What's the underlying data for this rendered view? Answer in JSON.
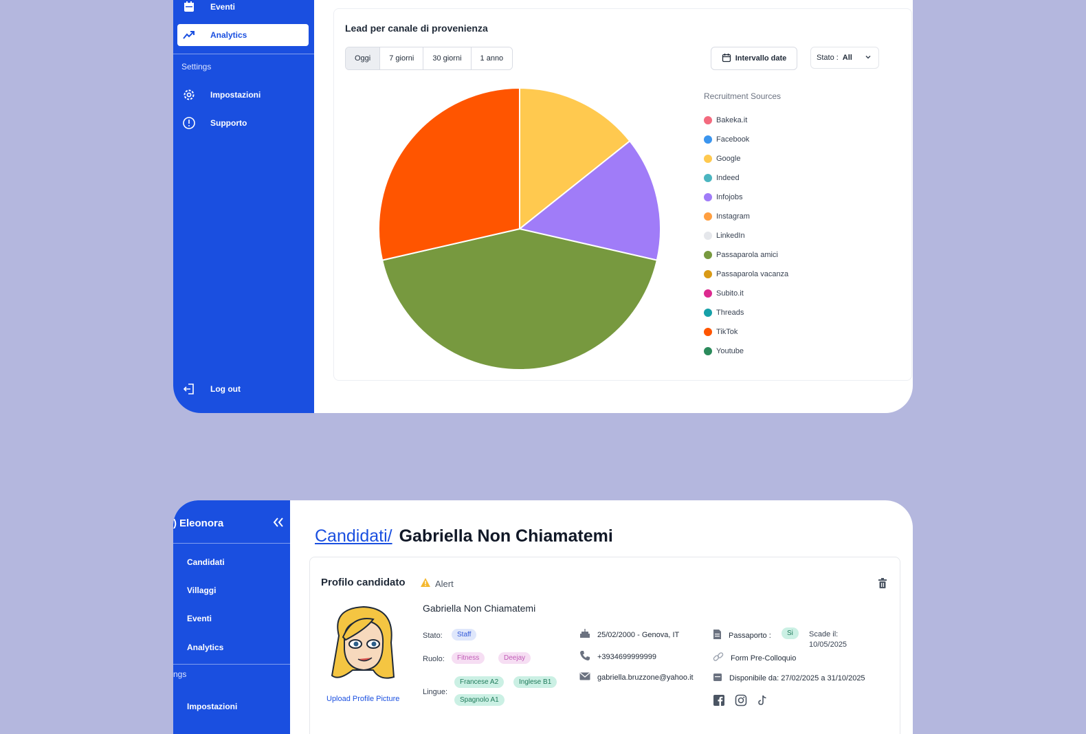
{
  "top_panel": {
    "sidebar": {
      "items": [
        {
          "label": "Eventi",
          "icon": "calendar-icon"
        },
        {
          "label": "Analytics",
          "icon": "trend-icon",
          "active": true
        }
      ],
      "section": "Settings",
      "settings_items": [
        {
          "label": "Impostazioni",
          "icon": "gear-icon"
        },
        {
          "label": "Supporto",
          "icon": "info-icon"
        }
      ],
      "logout": "Log out"
    },
    "card": {
      "title": "Lead per canale di provenienza",
      "ranges": [
        "Oggi",
        "7 giorni",
        "30 giorni",
        "1 anno"
      ],
      "date_button": "Intervallo date",
      "stato_label": "Stato :",
      "stato_value": "All"
    },
    "chart_data": {
      "type": "pie",
      "title": "",
      "legend_title": "Recruitment Sources",
      "legend_placement": "right",
      "categories": [
        "Bakeka.it",
        "Facebook",
        "Google",
        "Indeed",
        "Infojobs",
        "Instagram",
        "LinkedIn",
        "Passaparola amici",
        "Passaparola vacanza",
        "Subito.it",
        "Threads",
        "TikTok",
        "Youtube"
      ],
      "values": [
        0,
        0,
        1,
        0,
        1,
        0,
        0,
        3,
        0,
        0,
        0,
        2,
        0
      ],
      "colors": [
        "#f36a7e",
        "#3b95ee",
        "#ffc94f",
        "#4bb5c0",
        "#a07cf8",
        "#ff9f40",
        "#e5e7eb",
        "#77993f",
        "#d99a16",
        "#dc2a8f",
        "#16a0a8",
        "#ff5500",
        "#2b8a5b"
      ]
    }
  },
  "bottom_panel": {
    "sidebar": {
      "user_prefix": ")",
      "user_name": "Eleonora",
      "items": [
        "Candidati",
        "Villaggi",
        "Eventi",
        "Analytics"
      ],
      "section": "ngs",
      "settings_items": [
        "Impostazioni"
      ]
    },
    "breadcrumb": "Candidati/",
    "page_title": "Gabriella Non Chiamatemi",
    "profile": {
      "card_title": "Profilo candidato",
      "alert": "Alert",
      "upload": "Upload Profile Picture",
      "name": "Gabriella Non Chiamatemi",
      "stato_label": "Stato:",
      "stato": "Staff",
      "ruolo_label": "Ruolo:",
      "ruoli": [
        "Fitness",
        "Deejay"
      ],
      "lingue_label": "Lingue:",
      "lingue": [
        "Francese A2",
        "Inglese B1",
        "Spagnolo A1"
      ],
      "birth": "25/02/2000 - Genova, IT",
      "phone": "+3934699999999",
      "email": "gabriella.bruzzone@yahoo.it",
      "passport_label": "Passaporto :",
      "passport_value": "Si",
      "scade_label": "Scade il:",
      "scade_date": "10/05/2025",
      "form": "Form Pre-Colloquio",
      "availability": "Disponibile da: 27/02/2025 a 31/10/2025"
    }
  }
}
